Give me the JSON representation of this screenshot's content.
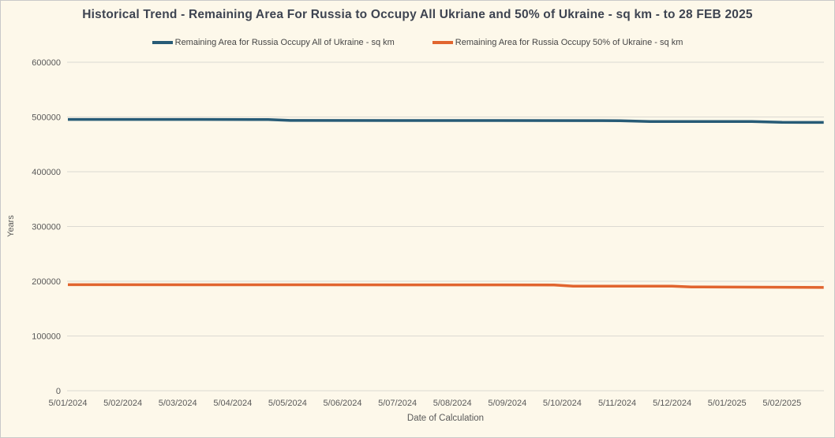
{
  "colors": {
    "background": "#fdf8ea",
    "border": "#c9c9c9",
    "gridline": "#dcdad2",
    "title_text": "#3e4451",
    "axis_text": "#595959",
    "series_all_ukraine": "#275b76",
    "series_half_ukraine": "#e1652f"
  },
  "legend": {
    "items": [
      {
        "label": "Remaining Area for Russia Occupy All of Ukraine - sq km",
        "color": "#275b76"
      },
      {
        "label": "Remaining Area for Russia Occupy 50% of Ukraine - sq km",
        "color": "#e1652f"
      }
    ]
  },
  "chart_data": {
    "type": "line",
    "title": "Historical Trend - Remaining Area For Russia to Occupy All Ukriane and 50% of Ukraine - sq km - to 28 FEB 2025",
    "xlabel": "Date of Calculation",
    "ylabel": "Years",
    "ylim": [
      0,
      600000
    ],
    "yticks": [
      0,
      100000,
      200000,
      300000,
      400000,
      500000,
      600000
    ],
    "x_tick_labels": [
      "5/01/2024",
      "5/02/2024",
      "5/03/2024",
      "5/04/2024",
      "5/05/2024",
      "5/06/2024",
      "5/07/2024",
      "5/08/2024",
      "5/09/2024",
      "5/10/2024",
      "5/11/2024",
      "5/12/2024",
      "5/01/2025",
      "5/02/2025"
    ],
    "x_end_date": "28 FEB 2025",
    "grid": true,
    "legend_position": "top",
    "series": [
      {
        "name": "Remaining Area for Russia Occupy All of Ukraine - sq km",
        "color": "#275b76",
        "points": [
          {
            "x": 0,
            "y": 495500
          },
          {
            "x": 3.4,
            "y": 495400
          },
          {
            "x": 3.65,
            "y": 495300
          },
          {
            "x": 4.05,
            "y": 493600
          },
          {
            "x": 9.5,
            "y": 493400
          },
          {
            "x": 10.05,
            "y": 493300
          },
          {
            "x": 10.6,
            "y": 491800
          },
          {
            "x": 12.45,
            "y": 491600
          },
          {
            "x": 13.0,
            "y": 490200
          },
          {
            "x": 13.76,
            "y": 490000
          }
        ]
      },
      {
        "name": "Remaining Area for Russia Occupy 50% of Ukraine - sq km",
        "color": "#e1652f",
        "points": [
          {
            "x": 0,
            "y": 193700
          },
          {
            "x": 8.85,
            "y": 193300
          },
          {
            "x": 9.2,
            "y": 191100
          },
          {
            "x": 11.0,
            "y": 191000
          },
          {
            "x": 11.35,
            "y": 189600
          },
          {
            "x": 13.76,
            "y": 188700
          }
        ]
      }
    ]
  }
}
